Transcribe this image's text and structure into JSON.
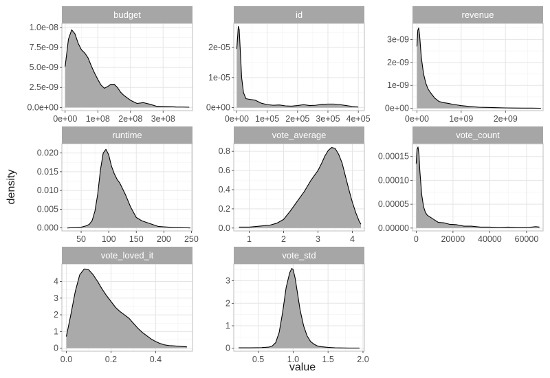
{
  "figure": {
    "xlabel": "value",
    "ylabel": "density"
  },
  "style": {
    "strip_fill": "#a6a6a6",
    "strip_text": "#ffffff",
    "area_fill": "#aaaaaa",
    "line": "#000000",
    "grid": "#e5e5e5",
    "panel_border": "#bdbdbd"
  },
  "chart_data": [
    {
      "type": "area",
      "title": "budget",
      "xlim": [
        -10000000,
        390000000
      ],
      "ylim": [
        -4e-10,
        1.05e-08
      ],
      "x_ticks": [
        0,
        100000000,
        200000000,
        300000000
      ],
      "x_tick_labels": [
        "0e+00",
        "1e+08",
        "2e+08",
        "3e+08"
      ],
      "y_ticks": [
        0,
        2.5e-09,
        5e-09,
        7.5e-09,
        1e-08
      ],
      "y_tick_labels": [
        "0.0e+00",
        "2.5e-09",
        "5.0e-09",
        "7.5e-09",
        "1.0e-08"
      ],
      "x": [
        0,
        10000000,
        20000000,
        30000000,
        40000000,
        50000000,
        60000000,
        70000000,
        80000000,
        90000000,
        100000000,
        110000000,
        120000000,
        130000000,
        140000000,
        150000000,
        160000000,
        170000000,
        180000000,
        190000000,
        200000000,
        220000000,
        240000000,
        260000000,
        280000000,
        300000000,
        320000000,
        340000000,
        360000000,
        380000000
      ],
      "y": [
        5.1e-09,
        8.5e-09,
        9.7e-09,
        9.2e-09,
        8e-09,
        7.2e-09,
        6.8e-09,
        6.2e-09,
        5.2e-09,
        4.3e-09,
        3.5e-09,
        2.8e-09,
        2.4e-09,
        2.6e-09,
        2.9e-09,
        2.9e-09,
        2.5e-09,
        1.9e-09,
        1.5e-09,
        1.2e-09,
        9e-10,
        5e-10,
        6e-10,
        4e-10,
        1.5e-10,
        1.2e-10,
        1e-10,
        6e-11,
        5e-11,
        3e-11
      ]
    },
    {
      "type": "area",
      "title": "id",
      "xlim": [
        -10000,
        420000
      ],
      "ylim": [
        -1e-06,
        2.8e-05
      ],
      "x_ticks": [
        0,
        100000,
        200000,
        300000,
        400000
      ],
      "x_tick_labels": [
        "0e+00",
        "1e+05",
        "2e+05",
        "3e+05",
        "4e+05"
      ],
      "y_ticks": [
        0,
        1e-05,
        2e-05
      ],
      "y_tick_labels": [
        "0e+00",
        "1e-05",
        "2e-05"
      ],
      "x": [
        0,
        5000,
        8000,
        12000,
        16000,
        22000,
        30000,
        40000,
        60000,
        80000,
        100000,
        120000,
        140000,
        160000,
        180000,
        200000,
        220000,
        240000,
        260000,
        280000,
        300000,
        320000,
        340000,
        360000,
        380000,
        400000
      ],
      "y": [
        1.95e-05,
        2.7e-05,
        2.6e-05,
        1.8e-05,
        1e-05,
        5e-06,
        3e-06,
        2.8e-06,
        2.5e-06,
        1.5e-06,
        1e-06,
        8e-07,
        9e-07,
        6e-07,
        5e-07,
        7e-07,
        1e-06,
        7e-07,
        8e-07,
        1.1e-06,
        1.2e-06,
        1.2e-06,
        1e-06,
        7e-07,
        4e-07,
        2e-07
      ]
    },
    {
      "type": "area",
      "title": "revenue",
      "xlim": [
        -100000000,
        2850000000
      ],
      "ylim": [
        -1e-10,
        3.7e-09
      ],
      "x_ticks": [
        0,
        1000000000,
        2000000000
      ],
      "x_tick_labels": [
        "0e+00",
        "1e+09",
        "2e+09"
      ],
      "y_ticks": [
        0,
        1e-09,
        2e-09,
        3e-09
      ],
      "y_tick_labels": [
        "0e+00",
        "1e-09",
        "2e-09",
        "3e-09"
      ],
      "x": [
        0,
        20000000,
        40000000,
        60000000,
        80000000,
        100000000,
        150000000,
        200000000,
        250000000,
        300000000,
        400000000,
        500000000,
        600000000,
        700000000,
        800000000,
        900000000,
        1000000000,
        1200000000,
        1400000000,
        1600000000,
        1800000000,
        2000000000,
        2200000000,
        2400000000,
        2600000000,
        2800000000
      ],
      "y": [
        2.7e-09,
        3.4e-09,
        3.5e-09,
        3.2e-09,
        2.7e-09,
        2.2e-09,
        1.5e-09,
        1.1e-09,
        8.5e-10,
        7e-10,
        4.5e-10,
        3e-10,
        2.5e-10,
        2.2e-10,
        1.8e-10,
        1.5e-10,
        1.2e-10,
        8e-11,
        5e-11,
        4e-11,
        3e-11,
        2e-11,
        1.5e-11,
        1e-11,
        1e-11,
        5e-12
      ]
    },
    {
      "type": "area",
      "title": "runtime",
      "xlim": [
        15,
        252
      ],
      "ylim": [
        -0.0008,
        0.0225
      ],
      "x_ticks": [
        50,
        100,
        150,
        200,
        250
      ],
      "x_tick_labels": [
        "50",
        "100",
        "150",
        "200",
        "250"
      ],
      "y_ticks": [
        0,
        0.005,
        0.01,
        0.015,
        0.02
      ],
      "y_tick_labels": [
        "0.000",
        "0.005",
        "0.010",
        "0.015",
        "0.020"
      ],
      "x": [
        25,
        40,
        50,
        60,
        65,
        70,
        75,
        80,
        85,
        90,
        95,
        100,
        105,
        110,
        115,
        120,
        125,
        130,
        140,
        150,
        160,
        170,
        180,
        190,
        200,
        210,
        220,
        230,
        240,
        248
      ],
      "y": [
        0,
        0.0001,
        0.0002,
        0.0006,
        0.001,
        0.002,
        0.0045,
        0.009,
        0.0155,
        0.02,
        0.021,
        0.0195,
        0.0165,
        0.0145,
        0.013,
        0.012,
        0.0105,
        0.009,
        0.0055,
        0.0028,
        0.0019,
        0.0014,
        0.0009,
        0.0004,
        0.0003,
        0.0002,
        0.0001,
        0.0001,
        5e-05,
        0
      ]
    },
    {
      "type": "area",
      "title": "vote_average",
      "xlim": [
        0.55,
        4.35
      ],
      "ylim": [
        -0.03,
        0.88
      ],
      "x_ticks": [
        1,
        2,
        3,
        4
      ],
      "x_tick_labels": [
        "1",
        "2",
        "3",
        "4"
      ],
      "y_ticks": [
        0,
        0.2,
        0.4,
        0.6,
        0.8
      ],
      "y_tick_labels": [
        "0.0",
        "0.2",
        "0.4",
        "0.6",
        "0.8"
      ],
      "x": [
        0.7,
        1.0,
        1.3,
        1.6,
        1.8,
        2.0,
        2.2,
        2.4,
        2.6,
        2.8,
        3.0,
        3.1,
        3.2,
        3.3,
        3.4,
        3.5,
        3.6,
        3.7,
        3.8,
        3.9,
        4.0,
        4.1,
        4.2,
        4.25
      ],
      "y": [
        0.01,
        0.01,
        0.02,
        0.03,
        0.05,
        0.09,
        0.18,
        0.28,
        0.38,
        0.5,
        0.6,
        0.67,
        0.75,
        0.81,
        0.84,
        0.83,
        0.77,
        0.68,
        0.54,
        0.4,
        0.27,
        0.16,
        0.07,
        0.04
      ]
    },
    {
      "type": "area",
      "title": "vote_count",
      "xlim": [
        -2000,
        69000
      ],
      "ylim": [
        -6e-06,
        0.000177
      ],
      "x_ticks": [
        0,
        20000,
        40000,
        60000
      ],
      "x_tick_labels": [
        "0",
        "20000",
        "40000",
        "60000"
      ],
      "y_ticks": [
        0,
        5e-05,
        0.0001,
        0.00015
      ],
      "y_tick_labels": [
        "0.00000",
        "0.00005",
        "0.00010",
        "0.00015"
      ],
      "x": [
        0,
        500,
        1000,
        1500,
        2000,
        3000,
        4000,
        5000,
        6000,
        8000,
        10000,
        12000,
        15000,
        18000,
        22000,
        26000,
        30000,
        35000,
        40000,
        45000,
        50000,
        55000,
        60000,
        65000,
        67000
      ],
      "y": [
        0.000135,
        0.000165,
        0.00017,
        0.000155,
        0.00012,
        7e-05,
        4.5e-05,
        3.3e-05,
        2.7e-05,
        2.2e-05,
        1.7e-05,
        1.2e-05,
        1.1e-05,
        8e-06,
        7e-06,
        4e-06,
        4e-06,
        2e-06,
        2e-06,
        1e-06,
        2e-06,
        1e-06,
        1e-06,
        3e-06,
        2e-06
      ]
    },
    {
      "type": "area",
      "title": "vote_loved_it",
      "xlim": [
        -0.02,
        0.565
      ],
      "ylim": [
        -0.18,
        5.05
      ],
      "x_ticks": [
        0,
        0.2,
        0.4
      ],
      "x_tick_labels": [
        "0.0",
        "0.2",
        "0.4"
      ],
      "y_ticks": [
        0,
        1,
        2,
        3,
        4
      ],
      "y_tick_labels": [
        "0",
        "1",
        "2",
        "3",
        "4"
      ],
      "x": [
        0,
        0.02,
        0.04,
        0.06,
        0.08,
        0.1,
        0.12,
        0.14,
        0.16,
        0.18,
        0.2,
        0.22,
        0.24,
        0.26,
        0.28,
        0.3,
        0.32,
        0.34,
        0.36,
        0.38,
        0.4,
        0.42,
        0.44,
        0.46,
        0.48,
        0.5,
        0.52,
        0.54
      ],
      "y": [
        0.7,
        2.0,
        3.4,
        4.4,
        4.75,
        4.7,
        4.4,
        4.0,
        3.55,
        3.15,
        2.8,
        2.45,
        2.2,
        2.0,
        1.8,
        1.5,
        1.2,
        0.95,
        0.75,
        0.55,
        0.4,
        0.28,
        0.2,
        0.16,
        0.14,
        0.12,
        0.1,
        0.08
      ]
    },
    {
      "type": "area",
      "title": "vote_std",
      "xlim": [
        0.15,
        2.02
      ],
      "ylim": [
        -0.13,
        3.75
      ],
      "x_ticks": [
        0.5,
        1.0,
        1.5,
        2.0
      ],
      "x_tick_labels": [
        "0.5",
        "1.0",
        "1.5",
        "2.0"
      ],
      "y_ticks": [
        0,
        1,
        2,
        3
      ],
      "y_tick_labels": [
        "0",
        "1",
        "2",
        "3"
      ],
      "x": [
        0.22,
        0.4,
        0.55,
        0.65,
        0.7,
        0.75,
        0.8,
        0.85,
        0.9,
        0.95,
        0.98,
        1.0,
        1.03,
        1.06,
        1.1,
        1.15,
        1.2,
        1.25,
        1.3,
        1.35,
        1.4,
        1.5,
        1.6,
        1.8,
        1.95
      ],
      "y": [
        0.02,
        0.02,
        0.03,
        0.05,
        0.1,
        0.25,
        0.7,
        1.6,
        2.7,
        3.35,
        3.55,
        3.5,
        3.1,
        2.5,
        1.7,
        1.0,
        0.55,
        0.3,
        0.18,
        0.1,
        0.07,
        0.04,
        0.02,
        0.01,
        0.01
      ]
    }
  ]
}
